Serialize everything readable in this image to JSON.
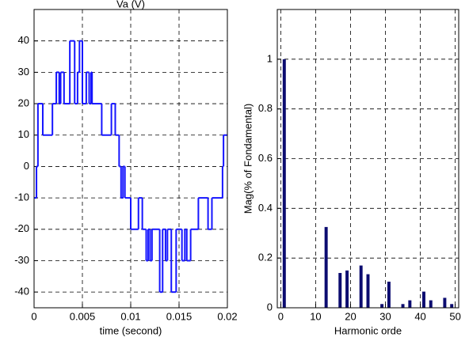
{
  "chart_data": [
    {
      "type": "step",
      "title": "Va (V)",
      "x_label": "time (second)",
      "color": "#1515ff",
      "x": [
        0,
        0.00025,
        0.0004,
        0.0009,
        0.0019,
        0.0023,
        0.0026,
        0.00275,
        0.0031,
        0.0037,
        0.0042,
        0.0045,
        0.0047,
        0.005,
        0.0054,
        0.0057,
        0.0059,
        0.006,
        0.007,
        0.008,
        0.0084,
        0.0088,
        0.009,
        0.0092,
        0.0094,
        0.01,
        0.0108,
        0.0112,
        0.0116,
        0.0118,
        0.012,
        0.0122,
        0.013,
        0.0133,
        0.0136,
        0.0138,
        0.0142,
        0.0147,
        0.0153,
        0.0156,
        0.0158,
        0.0162,
        0.017,
        0.018,
        0.0184,
        0.0195,
        0.0196,
        0.02
      ],
      "values": [
        -10,
        0,
        20,
        10,
        20,
        30,
        20,
        30,
        20,
        40,
        20,
        30,
        40,
        20,
        30,
        20,
        30,
        20,
        10,
        20,
        10,
        0,
        -10,
        0,
        -10,
        -20,
        -10,
        -20,
        -30,
        -20,
        -30,
        -20,
        -40,
        -20,
        -30,
        -20,
        -40,
        -20,
        -30,
        -20,
        -30,
        -20,
        -10,
        -20,
        -10,
        0,
        10,
        10
      ],
      "xlim": [
        0,
        0.02
      ],
      "xticks": [
        0,
        0.005,
        0.01,
        0.015,
        0.02
      ],
      "ylim": [
        -45,
        50
      ],
      "yticks": [
        -40,
        -30,
        -20,
        -10,
        0,
        10,
        20,
        30,
        40
      ],
      "grid": true
    },
    {
      "type": "bar",
      "x_label": "Harmonic orde",
      "y_label": "Mag(% of Fondamental)",
      "color": "#0c0c70",
      "x": [
        1,
        13,
        17,
        19,
        23,
        25,
        29,
        31,
        35,
        37,
        41,
        43,
        47,
        49
      ],
      "values": [
        1,
        0.325,
        0.14,
        0.15,
        0.17,
        0.135,
        0.015,
        0.105,
        0.015,
        0.03,
        0.065,
        0.03,
        0.04,
        0.015
      ],
      "xlim": [
        -1,
        51
      ],
      "xticks": [
        0,
        10,
        20,
        30,
        40,
        50
      ],
      "ylim": [
        0,
        1.2
      ],
      "yticks": [
        0,
        0.2,
        0.4,
        0.6,
        0.8,
        1
      ],
      "grid": true
    }
  ]
}
